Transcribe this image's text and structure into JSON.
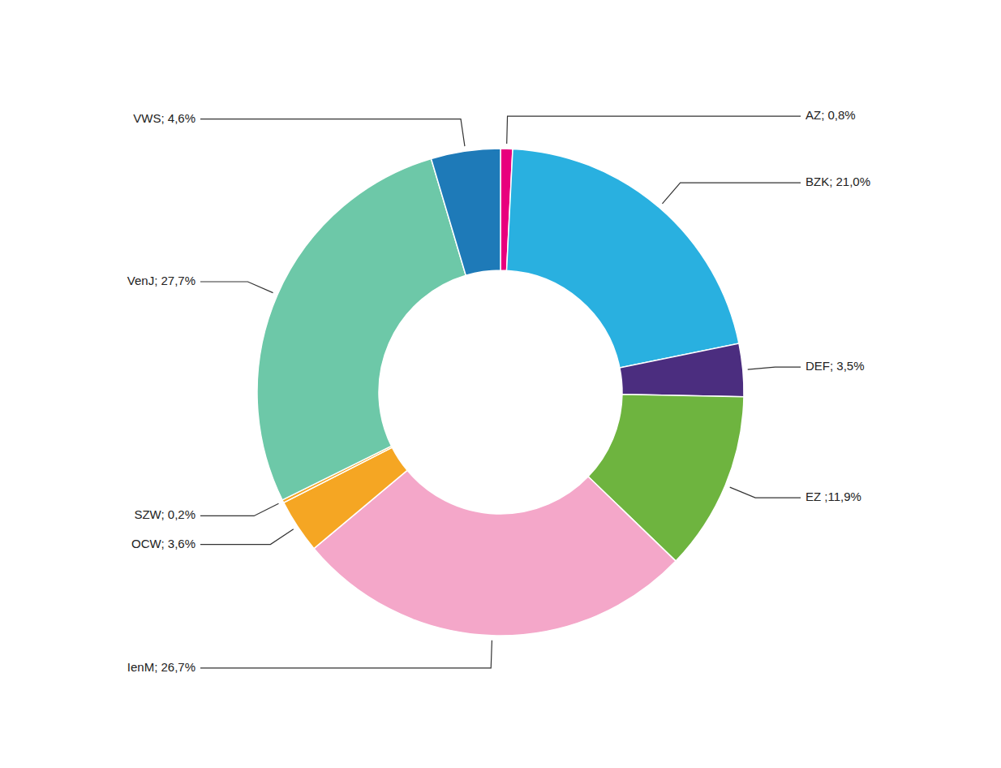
{
  "chart_data": {
    "type": "donut",
    "values": [
      0.8,
      21.0,
      3.5,
      11.9,
      26.7,
      3.6,
      0.2,
      27.7,
      4.6
    ],
    "value_labels": [
      "AZ; 0,8%",
      "BZK; 21,0%",
      "DEF; 3,5%",
      "EZ ;11,9%",
      "IenM; 26,7%",
      "OCW; 3,6%",
      "SZW; 0,2%",
      "VenJ; 27,7%",
      "VWS; 4,6%"
    ],
    "colors": [
      "#e8007d",
      "#29b0e0",
      "#4b2d7f",
      "#6eb43f",
      "#f4a7c9",
      "#f5a623",
      "#f5a623",
      "#6dc8a8",
      "#1e7ab8"
    ],
    "data_labels": true
  }
}
